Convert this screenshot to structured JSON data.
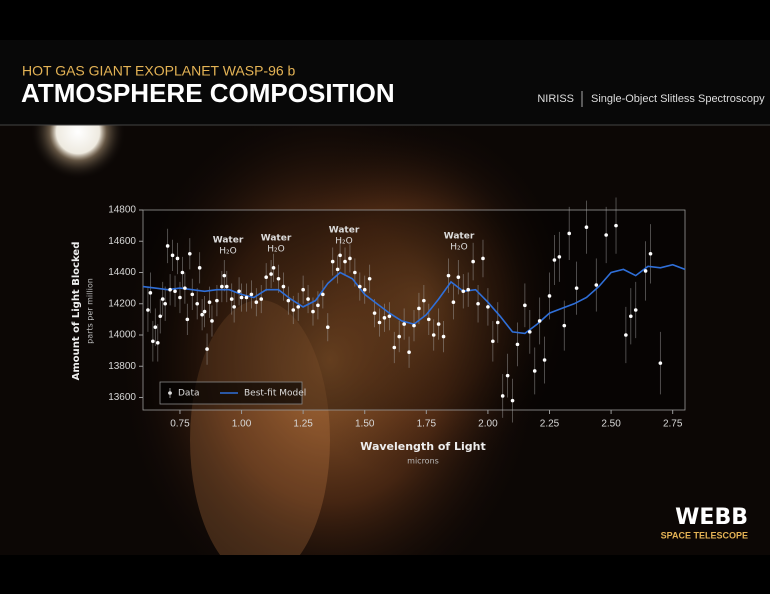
{
  "header": {
    "subtitle": "HOT GAS GIANT EXOPLANET WASP-96 b",
    "title": "ATMOSPHERE COMPOSITION",
    "instrument": "NIRISS",
    "mode": "Single-Object Slitless Spectroscopy"
  },
  "logo": {
    "name": "WEBB",
    "tagline": "SPACE TELESCOPE"
  },
  "chart_data": {
    "type": "scatter",
    "x_label": "Wavelength of Light",
    "x_sublabel": "microns",
    "y_label": "Amount of Light Blocked",
    "y_sublabel": "parts per million",
    "xlim": [
      0.6,
      2.8
    ],
    "ylim": [
      13520,
      14800
    ],
    "xticks": [
      0.75,
      {
        "value": 1,
        "label": "1.00"
      },
      1.25,
      {
        "value": 1.5,
        "label": "1.50"
      },
      1.75,
      {
        "value": 2,
        "label": "2.00"
      },
      2.25,
      {
        "value": 2.5,
        "label": "2.50"
      },
      2.75
    ],
    "yticks": [
      13600,
      13800,
      14000,
      14200,
      14400,
      14600,
      14800
    ],
    "legend": "lower left",
    "annotations": [
      {
        "text": "Water",
        "sub": "H₂O"
      },
      {
        "text": "Water",
        "sub": "H₂O"
      },
      {
        "text": "Water",
        "sub": "H₂O"
      },
      {
        "text": "Water",
        "sub": "H₂O"
      }
    ],
    "series": [
      {
        "name": "Data",
        "color": "#ffffff",
        "x": [
          0.62,
          0.63,
          0.64,
          0.65,
          0.66,
          0.67,
          0.68,
          0.69,
          0.7,
          0.71,
          0.72,
          0.73,
          0.74,
          0.75,
          0.76,
          0.77,
          0.78,
          0.79,
          0.8,
          0.82,
          0.83,
          0.84,
          0.85,
          0.86,
          0.87,
          0.88,
          0.9,
          0.92,
          0.93,
          0.94,
          0.96,
          0.97,
          0.99,
          1.0,
          1.02,
          1.04,
          1.06,
          1.08,
          1.1,
          1.12,
          1.13,
          1.15,
          1.17,
          1.19,
          1.21,
          1.23,
          1.25,
          1.27,
          1.29,
          1.31,
          1.33,
          1.35,
          1.37,
          1.39,
          1.4,
          1.42,
          1.44,
          1.46,
          1.48,
          1.5,
          1.52,
          1.54,
          1.56,
          1.58,
          1.6,
          1.62,
          1.64,
          1.66,
          1.68,
          1.7,
          1.72,
          1.74,
          1.76,
          1.78,
          1.8,
          1.82,
          1.84,
          1.86,
          1.88,
          1.9,
          1.92,
          1.94,
          1.96,
          1.98,
          2.0,
          2.02,
          2.04,
          2.06,
          2.08,
          2.1,
          2.12,
          2.15,
          2.17,
          2.19,
          2.21,
          2.23,
          2.25,
          2.27,
          2.29,
          2.31,
          2.33,
          2.36,
          2.4,
          2.44,
          2.48,
          2.52,
          2.56,
          2.58,
          2.6,
          2.64,
          2.66,
          2.7
        ],
        "values": [
          14160,
          14270,
          13960,
          14050,
          13950,
          14120,
          14230,
          14200,
          14570,
          14290,
          14510,
          14280,
          14490,
          14240,
          14400,
          14300,
          14100,
          14520,
          14260,
          14200,
          14430,
          14130,
          14150,
          13910,
          14210,
          14090,
          14220,
          14310,
          14380,
          14310,
          14230,
          14180,
          14280,
          14240,
          14240,
          14260,
          14210,
          14230,
          14370,
          14390,
          14430,
          14360,
          14310,
          14220,
          14160,
          14180,
          14290,
          14230,
          14150,
          14190,
          14260,
          14050,
          14470,
          14420,
          14510,
          14470,
          14490,
          14400,
          14310,
          14290,
          14360,
          14140,
          14080,
          14110,
          14120,
          13920,
          13990,
          14070,
          13890,
          14060,
          14170,
          14220,
          14100,
          14000,
          14070,
          13990,
          14380,
          14210,
          14370,
          14280,
          14290,
          14470,
          14200,
          14490,
          14180,
          13960,
          14080,
          13610,
          13740,
          13580,
          13940,
          14190,
          14020,
          13770,
          14090,
          13840,
          14250,
          14480,
          14500,
          14060,
          14650,
          14300,
          14690,
          14320,
          14640,
          14700,
          14000,
          14120,
          14160,
          14410,
          14520,
          13820
        ],
        "errors": [
          140,
          130,
          130,
          120,
          120,
          110,
          110,
          110,
          110,
          100,
          100,
          100,
          100,
          100,
          100,
          100,
          100,
          100,
          100,
          100,
          100,
          100,
          100,
          100,
          100,
          100,
          100,
          100,
          100,
          100,
          100,
          100,
          90,
          90,
          90,
          90,
          90,
          90,
          90,
          90,
          90,
          90,
          90,
          90,
          90,
          90,
          90,
          90,
          90,
          90,
          90,
          90,
          90,
          90,
          90,
          90,
          90,
          90,
          90,
          90,
          90,
          90,
          90,
          90,
          90,
          100,
          100,
          100,
          100,
          100,
          100,
          100,
          100,
          100,
          100,
          100,
          110,
          110,
          110,
          110,
          110,
          120,
          120,
          120,
          120,
          130,
          130,
          140,
          140,
          140,
          140,
          140,
          140,
          150,
          150,
          150,
          150,
          160,
          160,
          160,
          170,
          170,
          170,
          170,
          180,
          180,
          180,
          180,
          180,
          190,
          190,
          200
        ]
      },
      {
        "name": "Best-fit Model",
        "color": "#2f6fd8",
        "x": [
          0.6,
          0.65,
          0.7,
          0.75,
          0.8,
          0.85,
          0.9,
          0.95,
          1.0,
          1.05,
          1.1,
          1.15,
          1.2,
          1.25,
          1.3,
          1.35,
          1.4,
          1.45,
          1.5,
          1.55,
          1.6,
          1.65,
          1.7,
          1.75,
          1.8,
          1.85,
          1.9,
          1.95,
          2.0,
          2.05,
          2.1,
          2.15,
          2.2,
          2.25,
          2.3,
          2.35,
          2.4,
          2.45,
          2.5,
          2.55,
          2.6,
          2.65,
          2.7,
          2.75,
          2.8
        ],
        "values": [
          14310,
          14300,
          14290,
          14300,
          14290,
          14280,
          14290,
          14290,
          14260,
          14240,
          14290,
          14290,
          14230,
          14180,
          14220,
          14330,
          14400,
          14360,
          14260,
          14200,
          14140,
          14090,
          14070,
          14130,
          14230,
          14340,
          14280,
          14290,
          14210,
          14120,
          14020,
          14010,
          14070,
          14140,
          14170,
          14200,
          14240,
          14310,
          14400,
          14420,
          14380,
          14440,
          14430,
          14450,
          14420
        ]
      }
    ]
  }
}
